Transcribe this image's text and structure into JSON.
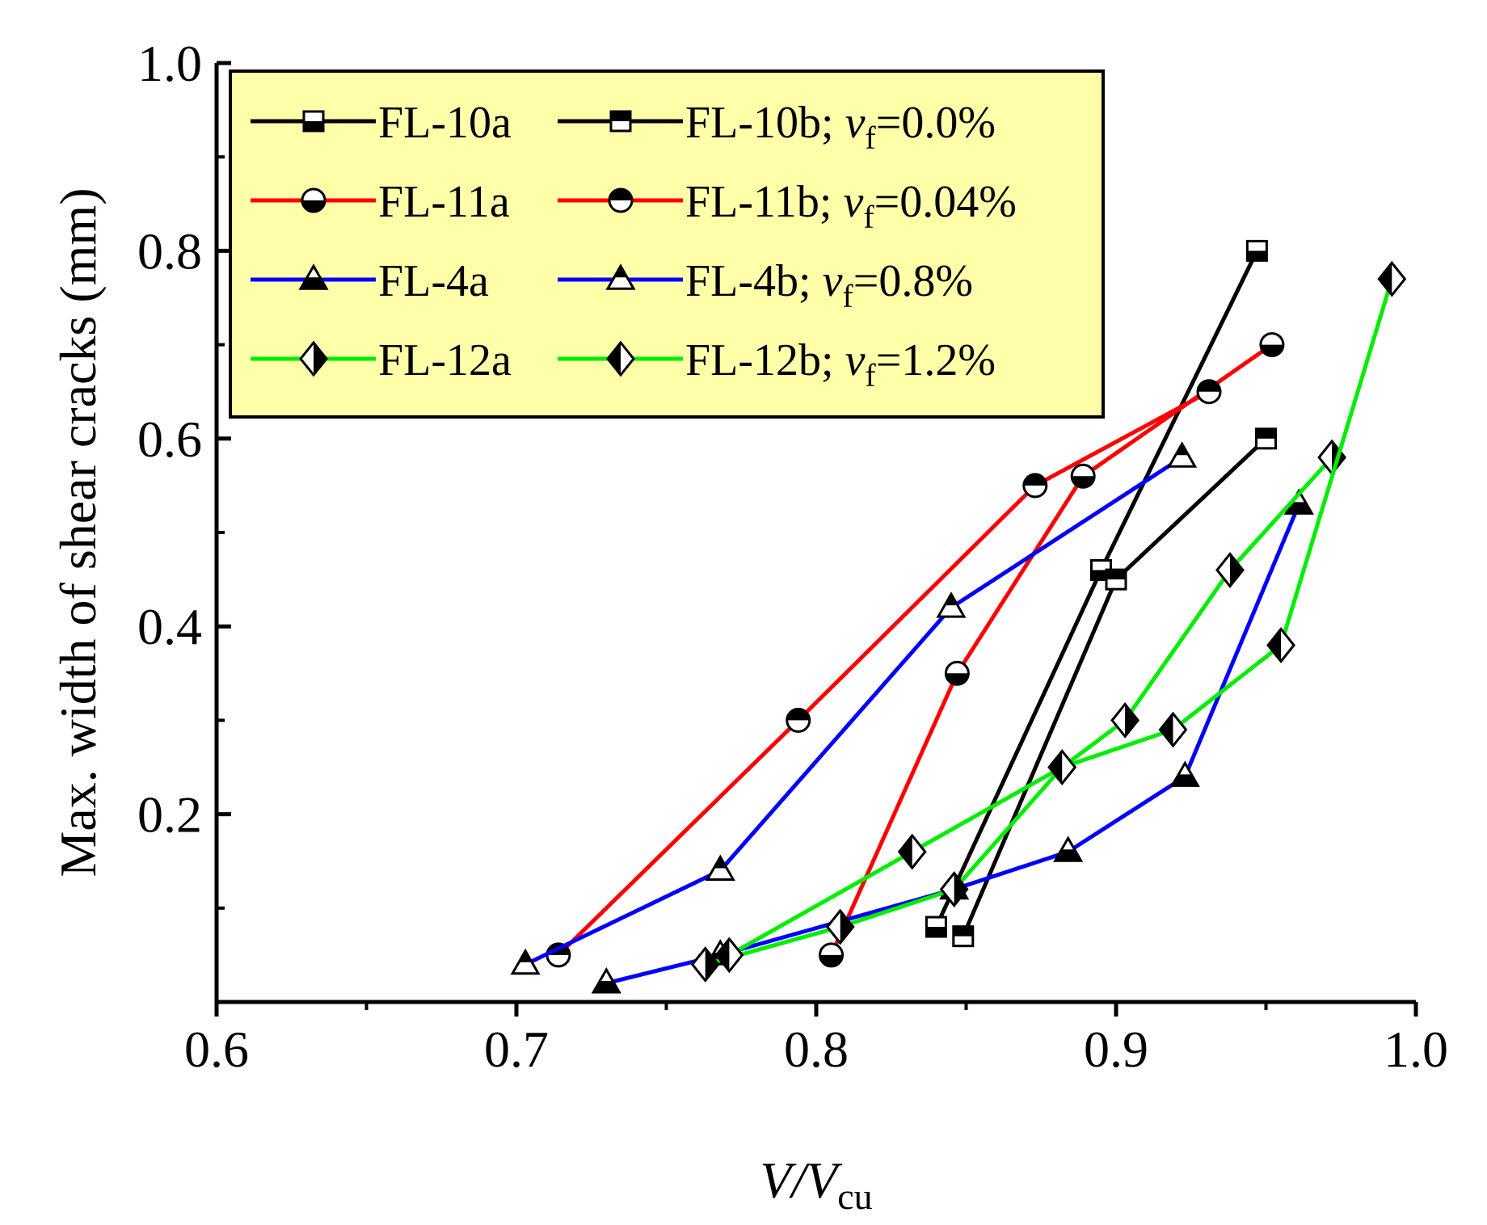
{
  "chart_data": {
    "type": "line",
    "xlabel": {
      "main": "V/V",
      "sub": "cu"
    },
    "ylabel": "Max. width of shear cracks (mm)",
    "xlim": [
      0.6,
      1.0
    ],
    "ylim": [
      0.0,
      1.0
    ],
    "xticks": [
      "0.6",
      "0.7",
      "0.8",
      "0.9",
      "1.0"
    ],
    "yticks": [
      "0.2",
      "0.4",
      "0.6",
      "0.8",
      "1.0"
    ],
    "legend_position": "top-left",
    "grid": false,
    "series": [
      {
        "name": "FL-10a",
        "color": "#000000",
        "marker": "square-bottom-filled",
        "x": [
          0.84,
          0.895,
          0.947
        ],
        "y": [
          0.08,
          0.46,
          0.8
        ]
      },
      {
        "name": "FL-10b",
        "color": "#000000",
        "marker": "square-top-filled",
        "x": [
          0.849,
          0.9,
          0.95
        ],
        "y": [
          0.07,
          0.45,
          0.6
        ]
      },
      {
        "name": "FL-11a",
        "color": "#ff0000",
        "marker": "circle-bottom-filled",
        "x": [
          0.805,
          0.847,
          0.889,
          0.952
        ],
        "y": [
          0.05,
          0.35,
          0.56,
          0.7
        ]
      },
      {
        "name": "FL-11b",
        "color": "#ff0000",
        "marker": "circle-top-filled",
        "x": [
          0.714,
          0.794,
          0.873,
          0.931
        ],
        "y": [
          0.05,
          0.3,
          0.55,
          0.65
        ]
      },
      {
        "name": "FL-4a",
        "color": "#0000ff",
        "marker": "triangle-bottom-filled",
        "x": [
          0.73,
          0.768,
          0.846,
          0.884,
          0.923,
          0.961
        ],
        "y": [
          0.02,
          0.05,
          0.12,
          0.16,
          0.24,
          0.53
        ]
      },
      {
        "name": "FL-4b",
        "color": "#0000ff",
        "marker": "triangle-top-filled",
        "x": [
          0.703,
          0.768,
          0.845,
          0.922
        ],
        "y": [
          0.04,
          0.14,
          0.42,
          0.58
        ]
      },
      {
        "name": "FL-12a",
        "color": "#00ee00",
        "marker": "diamond-right-filled",
        "x": [
          0.763,
          0.808,
          0.846,
          0.882,
          0.903,
          0.938,
          0.972
        ],
        "y": [
          0.04,
          0.08,
          0.12,
          0.25,
          0.3,
          0.46,
          0.58
        ]
      },
      {
        "name": "FL-12b",
        "color": "#00ee00",
        "marker": "diamond-left-filled",
        "x": [
          0.771,
          0.832,
          0.882,
          0.919,
          0.955,
          0.992
        ],
        "y": [
          0.05,
          0.16,
          0.25,
          0.29,
          0.38,
          0.77
        ]
      }
    ],
    "legend_rows": [
      {
        "a": "FL-10a",
        "b": "FL-10b; ",
        "vf": "v",
        "vfsub": "f",
        "val": "=0.0%"
      },
      {
        "a": "FL-11a",
        "b": "FL-11b; ",
        "vf": "v",
        "vfsub": "f",
        "val": "=0.04%"
      },
      {
        "a": "FL-4a",
        "b": "FL-4b; ",
        "vf": "v",
        "vfsub": "f",
        "val": "=0.8%"
      },
      {
        "a": "FL-12a",
        "b": "FL-12b; ",
        "vf": "v",
        "vfsub": "f",
        "val": "=1.2%"
      }
    ]
  }
}
